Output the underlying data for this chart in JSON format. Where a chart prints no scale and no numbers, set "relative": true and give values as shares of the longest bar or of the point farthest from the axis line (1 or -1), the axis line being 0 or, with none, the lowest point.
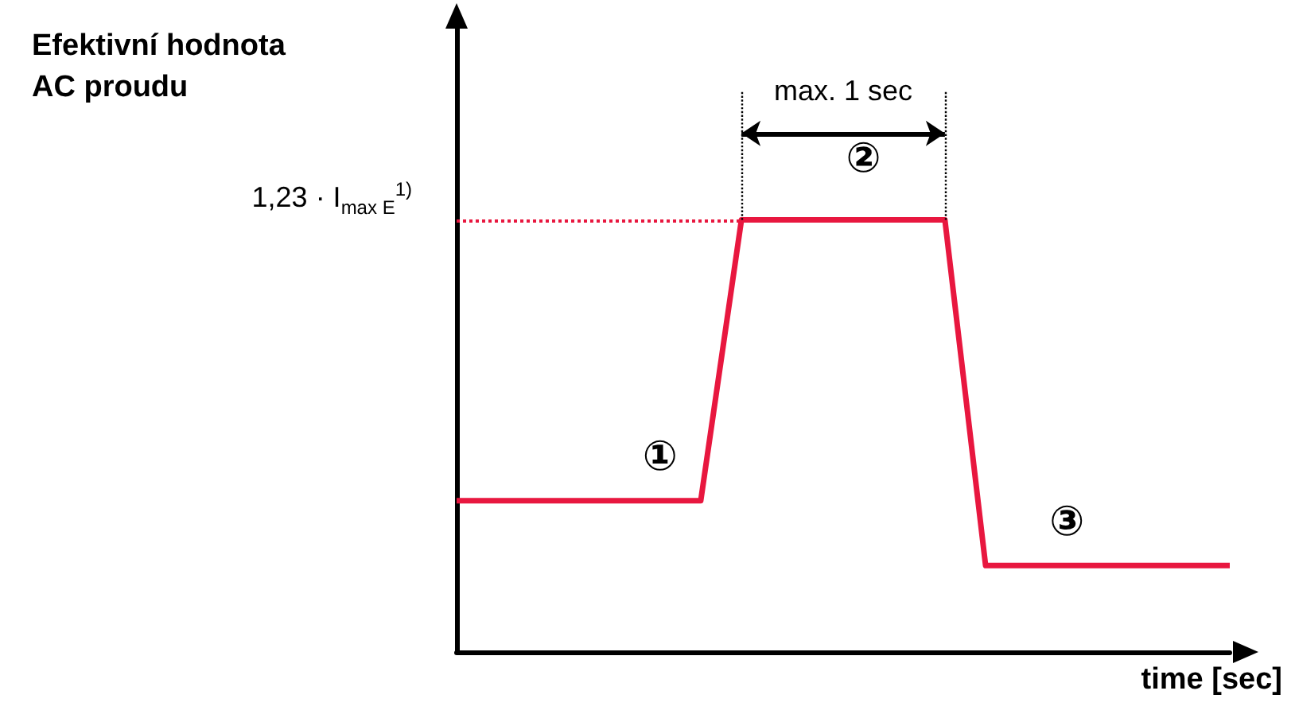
{
  "chart_data": {
    "type": "line",
    "relative": true,
    "xlabel": "time [sec]",
    "categories": [
      null,
      null,
      null,
      null,
      null,
      null,
      null,
      null,
      null,
      null,
      null,
      null,
      null,
      null,
      null,
      null,
      null,
      null,
      null,
      null
    ],
    "series": [
      {
        "color": "#e8173f",
        "values": [
          0.35,
          0.35,
          0.35,
          0.35,
          0.35,
          0.35,
          0.35,
          1,
          1,
          1,
          1,
          1,
          1,
          0.2,
          0.2,
          0.2,
          0.2,
          0.2,
          0.2,
          0.2
        ]
      }
    ],
    "ref_lines": [
      {
        "axis": "y",
        "value": 1,
        "label": "1,23 · I$_{max E}$$^{1)}$",
        "color": "#e8173f",
        "line_style": "dotted"
      }
    ],
    "annotations": [
      "Efektivní hodnota\nAC proudu",
      "max. 1 sec",
      "①",
      "②",
      "③"
    ],
    "marker": "none",
    "line_style": "solid",
    "grid": false
  }
}
